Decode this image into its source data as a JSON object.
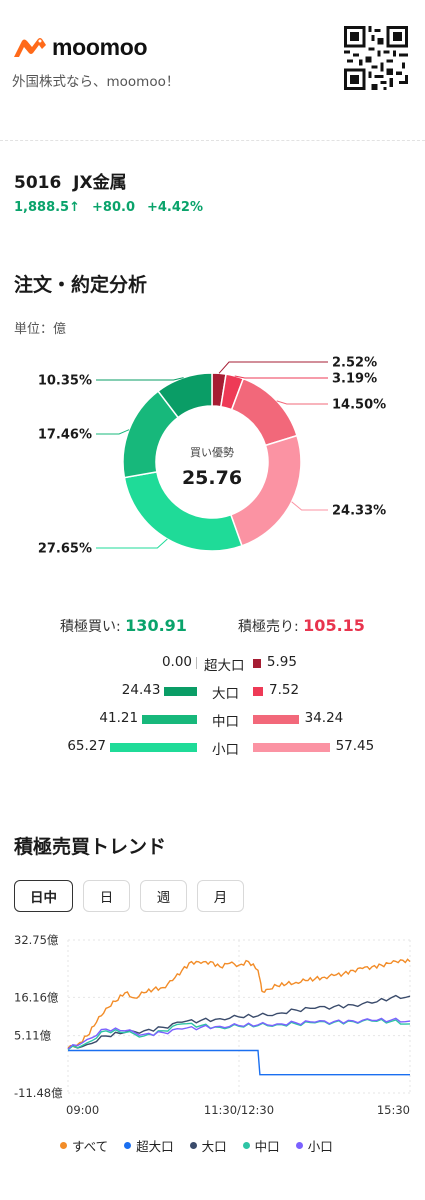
{
  "brand": {
    "name": "moomoo",
    "tagline": "外国株式なら、moomoo！"
  },
  "stock": {
    "code": "5016",
    "name": "JX金属",
    "price": "1,888.5",
    "change": "+80.0",
    "change_pct": "+4.42%"
  },
  "order_analysis": {
    "title": "注文・約定分析",
    "unit": "単位：億",
    "center_label": "買い優勢",
    "center_value": "25.76",
    "slices": [
      {
        "label": "2.52%",
        "value": 2.52,
        "color": "#a61d33",
        "side": "right"
      },
      {
        "label": "3.19%",
        "value": 3.19,
        "color": "#ee3a56",
        "side": "right"
      },
      {
        "label": "14.50%",
        "value": 14.5,
        "color": "#f2687a",
        "side": "right"
      },
      {
        "label": "24.33%",
        "value": 24.33,
        "color": "#fb93a3",
        "side": "right"
      },
      {
        "label": "27.65%",
        "value": 27.65,
        "color": "#1fdb98",
        "side": "left"
      },
      {
        "label": "17.46%",
        "value": 17.46,
        "color": "#17b87b",
        "side": "left"
      },
      {
        "label": "10.35%",
        "value": 10.35,
        "color": "#0a9d66",
        "side": "left"
      }
    ],
    "totals": {
      "buy_label": "積極買い:",
      "buy_value": "130.91",
      "sell_label": "積極売り:",
      "sell_value": "105.15"
    },
    "rows": [
      {
        "label": "超大口",
        "buy": "0.00",
        "sell": "5.95",
        "buy_num": 0.0,
        "sell_num": 5.95,
        "buy_color": "#0a9d66",
        "sell_color": "#a61d33"
      },
      {
        "label": "大口",
        "buy": "24.43",
        "sell": "7.52",
        "buy_num": 24.43,
        "sell_num": 7.52,
        "buy_color": "#0a9d66",
        "sell_color": "#ee3a56"
      },
      {
        "label": "中口",
        "buy": "41.21",
        "sell": "34.24",
        "buy_num": 41.21,
        "sell_num": 34.24,
        "buy_color": "#17b87b",
        "sell_color": "#f2687a"
      },
      {
        "label": "小口",
        "buy": "65.27",
        "sell": "57.45",
        "buy_num": 65.27,
        "sell_num": 57.45,
        "buy_color": "#1fdb98",
        "sell_color": "#fb93a3"
      }
    ]
  },
  "trend": {
    "title": "積極売買トレンド",
    "tabs": [
      {
        "label": "日中",
        "active": true
      },
      {
        "label": "日",
        "active": false
      },
      {
        "label": "週",
        "active": false
      },
      {
        "label": "月",
        "active": false
      }
    ],
    "chart_data": {
      "type": "line",
      "y_ticks": [
        "32.75億",
        "16.16億",
        "5.11億",
        "-11.48億"
      ],
      "x_ticks": [
        "09:00",
        "11:30/12:30",
        "15:30"
      ],
      "ylim": [
        -11.48,
        32.75
      ],
      "series": [
        {
          "name": "すべて",
          "color": "#f28c28",
          "points": [
            [
              0,
              1.5
            ],
            [
              5,
              2.5
            ],
            [
              10,
              5
            ],
            [
              15,
              9
            ],
            [
              20,
              13
            ],
            [
              25,
              15
            ],
            [
              30,
              17.5
            ],
            [
              35,
              16
            ],
            [
              40,
              17.5
            ],
            [
              45,
              18.5
            ],
            [
              50,
              19
            ],
            [
              55,
              21
            ],
            [
              60,
              24
            ],
            [
              65,
              26.5
            ],
            [
              70,
              26
            ],
            [
              75,
              26.5
            ],
            [
              80,
              25
            ],
            [
              85,
              26
            ],
            [
              90,
              25.5
            ],
            [
              95,
              26.5
            ],
            [
              100,
              24
            ],
            [
              102,
              18
            ],
            [
              105,
              18.5
            ],
            [
              110,
              19.5
            ],
            [
              115,
              20
            ],
            [
              120,
              20.5
            ],
            [
              125,
              21
            ],
            [
              130,
              21.5
            ],
            [
              135,
              22
            ],
            [
              140,
              22.5
            ],
            [
              145,
              23
            ],
            [
              150,
              24
            ],
            [
              155,
              24.5
            ],
            [
              160,
              25
            ],
            [
              165,
              25.5
            ],
            [
              170,
              26
            ],
            [
              175,
              27
            ],
            [
              180,
              26.5
            ]
          ]
        },
        {
          "name": "超大口",
          "color": "#1a6ff0",
          "points": [
            [
              0,
              0.8
            ],
            [
              100,
              0.8
            ],
            [
              101,
              -6.2
            ],
            [
              180,
              -6.2
            ]
          ]
        },
        {
          "name": "大口",
          "color": "#3a4b6b",
          "points": [
            [
              0,
              1.3
            ],
            [
              10,
              2.5
            ],
            [
              20,
              5
            ],
            [
              30,
              6
            ],
            [
              40,
              6.5
            ],
            [
              50,
              7.5
            ],
            [
              60,
              9
            ],
            [
              70,
              9.5
            ],
            [
              80,
              10
            ],
            [
              90,
              10.5
            ],
            [
              100,
              10.8
            ],
            [
              110,
              11.5
            ],
            [
              120,
              12.5
            ],
            [
              130,
              13
            ],
            [
              140,
              13.5
            ],
            [
              150,
              14
            ],
            [
              160,
              14.5
            ],
            [
              170,
              16
            ],
            [
              180,
              16.5
            ]
          ]
        },
        {
          "name": "中口",
          "color": "#2ec4a5",
          "points": [
            [
              0,
              1
            ],
            [
              10,
              3
            ],
            [
              20,
              6.5
            ],
            [
              30,
              6
            ],
            [
              40,
              5
            ],
            [
              50,
              6.5
            ],
            [
              60,
              8.5
            ],
            [
              70,
              8
            ],
            [
              80,
              7.5
            ],
            [
              90,
              7.8
            ],
            [
              100,
              8
            ],
            [
              110,
              8.3
            ],
            [
              120,
              8.5
            ],
            [
              130,
              8.8
            ],
            [
              140,
              9
            ],
            [
              150,
              9.2
            ],
            [
              160,
              9.3
            ],
            [
              170,
              9.2
            ],
            [
              180,
              8.5
            ]
          ]
        },
        {
          "name": "小口",
          "color": "#7b61ff",
          "points": [
            [
              0,
              1.2
            ],
            [
              10,
              4
            ],
            [
              20,
              7
            ],
            [
              30,
              6.5
            ],
            [
              40,
              5.5
            ],
            [
              50,
              6
            ],
            [
              60,
              7
            ],
            [
              70,
              7.5
            ],
            [
              80,
              7.8
            ],
            [
              90,
              8
            ],
            [
              100,
              8.2
            ],
            [
              110,
              8.5
            ],
            [
              120,
              8.8
            ],
            [
              130,
              9
            ],
            [
              140,
              9.2
            ],
            [
              150,
              9.4
            ],
            [
              160,
              9.5
            ],
            [
              170,
              9.6
            ],
            [
              180,
              9.3
            ]
          ]
        }
      ]
    }
  }
}
